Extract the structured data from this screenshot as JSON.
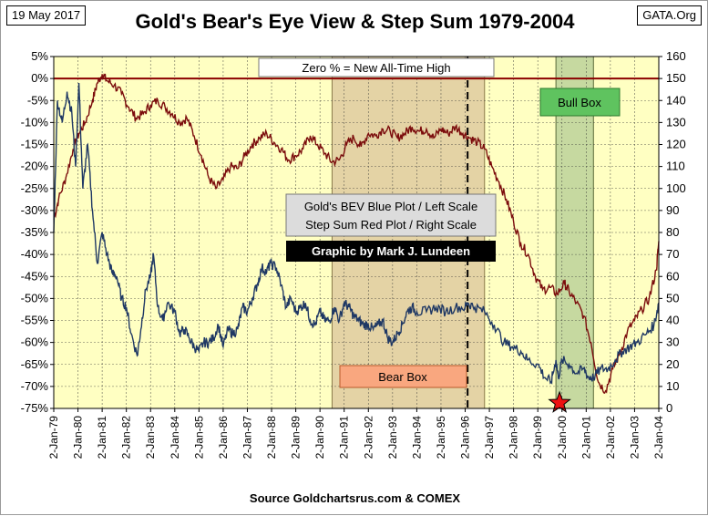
{
  "header": {
    "date": "19 May 2017",
    "site": "GATA.Org",
    "title": "Gold's Bear's Eye View & Step Sum 1979-2004"
  },
  "footer": {
    "source": "Source Goldchartsrus.com & COMEX"
  },
  "colors": {
    "plot_bg": "#ffffc2",
    "bev_line": "#1f3864",
    "step_sum_line": "#7b0c0c",
    "bear_box_fill": "#e4d3a5",
    "bull_box_fill": "#c6d9a0",
    "bear_label_bg": "#f9a77f",
    "bull_label_bg": "#5fc35f",
    "zero_line": "#8b0000"
  },
  "chart_data": {
    "type": "line",
    "title": "Gold's Bear's Eye View & Step Sum 1979-2004",
    "x_ticks": [
      "2-Jan-79",
      "2-Jan-80",
      "2-Jan-81",
      "2-Jan-82",
      "2-Jan-83",
      "2-Jan-84",
      "2-Jan-85",
      "2-Jan-86",
      "2-Jan-87",
      "2-Jan-88",
      "2-Jan-89",
      "2-Jan-90",
      "2-Jan-91",
      "2-Jan-92",
      "2-Jan-93",
      "2-Jan-94",
      "2-Jan-95",
      "2-Jan-96",
      "2-Jan-97",
      "2-Jan-98",
      "2-Jan-99",
      "2-Jan-00",
      "2-Jan-01",
      "2-Jan-02",
      "2-Jan-03",
      "2-Jan-04"
    ],
    "y_left": {
      "ticks": [
        "5%",
        "0%",
        "-5%",
        "-10%",
        "-15%",
        "-20%",
        "-25%",
        "-30%",
        "-35%",
        "-40%",
        "-45%",
        "-50%",
        "-55%",
        "-60%",
        "-65%",
        "-70%",
        "-75%"
      ],
      "min": -75,
      "max": 5
    },
    "y_right": {
      "ticks": [
        "160",
        "150",
        "140",
        "130",
        "120",
        "110",
        "100",
        "90",
        "80",
        "70",
        "60",
        "50",
        "40",
        "30",
        "20",
        "10",
        "0"
      ],
      "min": 0,
      "max": 160
    },
    "series": [
      {
        "name": "Gold's BEV Blue Plot / Left Scale",
        "axis": "left",
        "x": [
          1979.0,
          1979.15,
          1979.35,
          1979.55,
          1979.75,
          1979.9,
          1980.04,
          1980.2,
          1980.4,
          1980.6,
          1980.8,
          1981.0,
          1981.2,
          1981.4,
          1981.6,
          1981.8,
          1982.0,
          1982.2,
          1982.45,
          1982.6,
          1982.8,
          1983.0,
          1983.12,
          1983.3,
          1983.5,
          1983.7,
          1984.0,
          1984.2,
          1984.4,
          1984.6,
          1984.8,
          1985.0,
          1985.2,
          1985.4,
          1985.6,
          1985.8,
          1986.0,
          1986.2,
          1986.4,
          1986.6,
          1986.8,
          1987.0,
          1987.2,
          1987.4,
          1987.6,
          1987.8,
          1987.95,
          1988.2,
          1988.4,
          1988.6,
          1988.8,
          1989.0,
          1989.2,
          1989.4,
          1989.6,
          1989.8,
          1990.0,
          1990.2,
          1990.4,
          1990.6,
          1990.8,
          1991.0,
          1991.2,
          1991.4,
          1991.6,
          1991.8,
          1992.0,
          1992.2,
          1992.4,
          1992.6,
          1992.8,
          1993.0,
          1993.2,
          1993.4,
          1993.6,
          1993.8,
          1994.0,
          1994.4,
          1994.8,
          1995.2,
          1995.6,
          1996.0,
          1996.1,
          1996.4,
          1996.8,
          1997.2,
          1997.6,
          1997.95,
          1998.3,
          1998.6,
          1999.0,
          1999.3,
          1999.55,
          1999.75,
          1999.85,
          2000.0,
          2000.3,
          2000.6,
          2000.9,
          2001.1,
          2001.3,
          2001.6,
          2001.9,
          2002.2,
          2002.5,
          2002.8,
          2003.1,
          2003.5,
          2003.8,
          2004.0
        ],
        "values": [
          -35,
          -5,
          -10,
          -3,
          -8,
          -20,
          -1,
          -25,
          -15,
          -30,
          -42,
          -35,
          -40,
          -44,
          -45,
          -50,
          -52,
          -58,
          -63,
          -57,
          -48,
          -45,
          -40,
          -52,
          -55,
          -51,
          -53,
          -58,
          -57,
          -59,
          -61,
          -62,
          -60,
          -60,
          -59,
          -56,
          -61,
          -57,
          -58,
          -57,
          -52,
          -53,
          -50,
          -47,
          -43,
          -44,
          -42,
          -43,
          -47,
          -52,
          -50,
          -53,
          -52,
          -51,
          -55,
          -56,
          -53,
          -55,
          -55,
          -52,
          -55,
          -51,
          -52,
          -54,
          -55,
          -56,
          -56,
          -57,
          -56,
          -55,
          -59,
          -60,
          -58,
          -56,
          -53,
          -52,
          -53,
          -53,
          -52,
          -53,
          -52,
          -52,
          -51,
          -52,
          -53,
          -56,
          -60,
          -61,
          -62,
          -64,
          -65,
          -68,
          -69,
          -64,
          -68,
          -64,
          -65,
          -67,
          -66,
          -68,
          -68,
          -66,
          -66,
          -64,
          -62,
          -61,
          -60,
          -58,
          -56,
          -51
        ]
      },
      {
        "name": "Step Sum Red Plot / Right Scale",
        "axis": "right",
        "x": [
          1979.0,
          1979.2,
          1979.5,
          1979.8,
          1980.04,
          1980.3,
          1980.6,
          1980.8,
          1981.0,
          1981.2,
          1981.5,
          1981.8,
          1982.1,
          1982.4,
          1982.7,
          1983.0,
          1983.3,
          1983.6,
          1983.9,
          1984.2,
          1984.5,
          1984.8,
          1985.1,
          1985.4,
          1985.7,
          1986.0,
          1986.3,
          1986.6,
          1986.9,
          1987.2,
          1987.5,
          1987.8,
          1988.1,
          1988.4,
          1988.7,
          1989.0,
          1989.3,
          1989.6,
          1989.9,
          1990.2,
          1990.5,
          1990.8,
          1991.1,
          1991.4,
          1991.7,
          1992.0,
          1992.3,
          1992.6,
          1992.9,
          1993.2,
          1993.5,
          1993.8,
          1994.1,
          1994.4,
          1994.7,
          1995.0,
          1995.3,
          1995.6,
          1995.9,
          1996.2,
          1996.5,
          1996.8,
          1997.1,
          1997.4,
          1997.7,
          1998.0,
          1998.3,
          1998.6,
          1998.9,
          1999.2,
          1999.5,
          1999.8,
          2000.1,
          2000.3,
          2000.6,
          2000.9,
          2001.2,
          2001.5,
          2001.8,
          2002.1,
          2002.4,
          2002.7,
          2003.0,
          2003.3,
          2003.6,
          2003.9,
          2004.0
        ],
        "values": [
          86,
          95,
          105,
          118,
          125,
          130,
          140,
          148,
          152,
          149,
          147,
          143,
          137,
          132,
          134,
          138,
          140,
          137,
          134,
          130,
          132,
          124,
          115,
          105,
          100,
          104,
          110,
          109,
          115,
          120,
          123,
          125,
          121,
          118,
          113,
          115,
          118,
          124,
          120,
          116,
          112,
          113,
          120,
          123,
          119,
          125,
          124,
          127,
          126,
          123,
          125,
          128,
          126,
          127,
          123,
          127,
          125,
          128,
          125,
          123,
          121,
          118,
          110,
          103,
          95,
          85,
          75,
          70,
          60,
          54,
          55,
          52,
          57,
          53,
          48,
          42,
          30,
          12,
          8,
          18,
          25,
          35,
          40,
          45,
          50,
          63,
          76
        ]
      }
    ],
    "annotations": [
      "Zero % = New All-Time High",
      "Gold's BEV Blue Plot / Left Scale",
      "Step Sum Red Plot / Right Scale",
      "Graphic by Mark J. Lundeen",
      "Bull Box",
      "Bear Box"
    ],
    "bear_box": {
      "x_range": [
        1990.5,
        1996.8
      ],
      "label": "Bear Box"
    },
    "bull_box": {
      "x_range": [
        1999.75,
        2001.3
      ],
      "label": "Bull Box"
    },
    "dashed_marker_x": [
      1996.1
    ],
    "star_marker": {
      "x": 1999.9,
      "y": -75
    },
    "grid": true
  }
}
